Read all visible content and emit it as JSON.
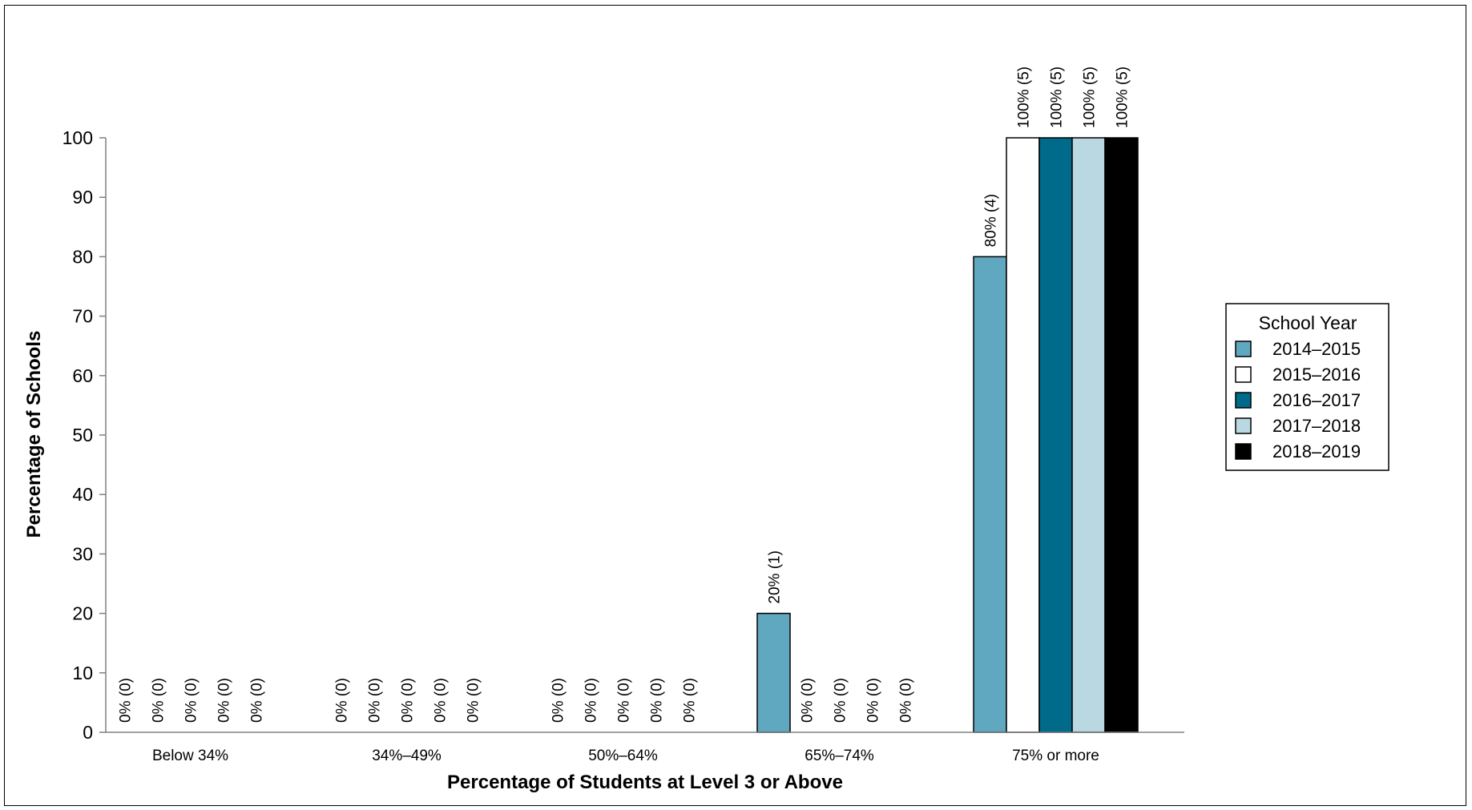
{
  "chart_data": {
    "type": "bar",
    "categories": [
      "Below 34%",
      "34%–49%",
      "50%–64%",
      "65%–74%",
      "75% or more"
    ],
    "series": [
      {
        "name": "2014–2015",
        "color": "#5fa8c0",
        "values": [
          0,
          0,
          0,
          20,
          80
        ],
        "labels": [
          "0% (0)",
          "0% (0)",
          "0% (0)",
          "20% (1)",
          "80% (4)"
        ]
      },
      {
        "name": "2015–2016",
        "color": "#ffffff",
        "values": [
          0,
          0,
          0,
          0,
          100
        ],
        "labels": [
          "0% (0)",
          "0% (0)",
          "0% (0)",
          "0% (0)",
          "100% (5)"
        ]
      },
      {
        "name": "2016–2017",
        "color": "#006a8a",
        "values": [
          0,
          0,
          0,
          0,
          100
        ],
        "labels": [
          "0% (0)",
          "0% (0)",
          "0% (0)",
          "0% (0)",
          "100% (5)"
        ]
      },
      {
        "name": "2017–2018",
        "color": "#b9d8e2",
        "values": [
          0,
          0,
          0,
          0,
          100
        ],
        "labels": [
          "0% (0)",
          "0% (0)",
          "0% (0)",
          "0% (0)",
          "100% (5)"
        ]
      },
      {
        "name": "2018–2019",
        "color": "#000000",
        "values": [
          0,
          0,
          0,
          0,
          100
        ],
        "labels": [
          "0% (0)",
          "0% (0)",
          "0% (0)",
          "0% (0)",
          "100% (5)"
        ]
      }
    ],
    "xlabel": "Percentage of Students at Level 3 or Above",
    "ylabel": "Percentage of Schools",
    "ylim": [
      0,
      100
    ],
    "yticks": [
      "0",
      "10",
      "20",
      "30",
      "40",
      "50",
      "60",
      "70",
      "80",
      "90",
      "100"
    ],
    "legend": {
      "title": "School Year",
      "position": "right"
    },
    "grid": false
  }
}
